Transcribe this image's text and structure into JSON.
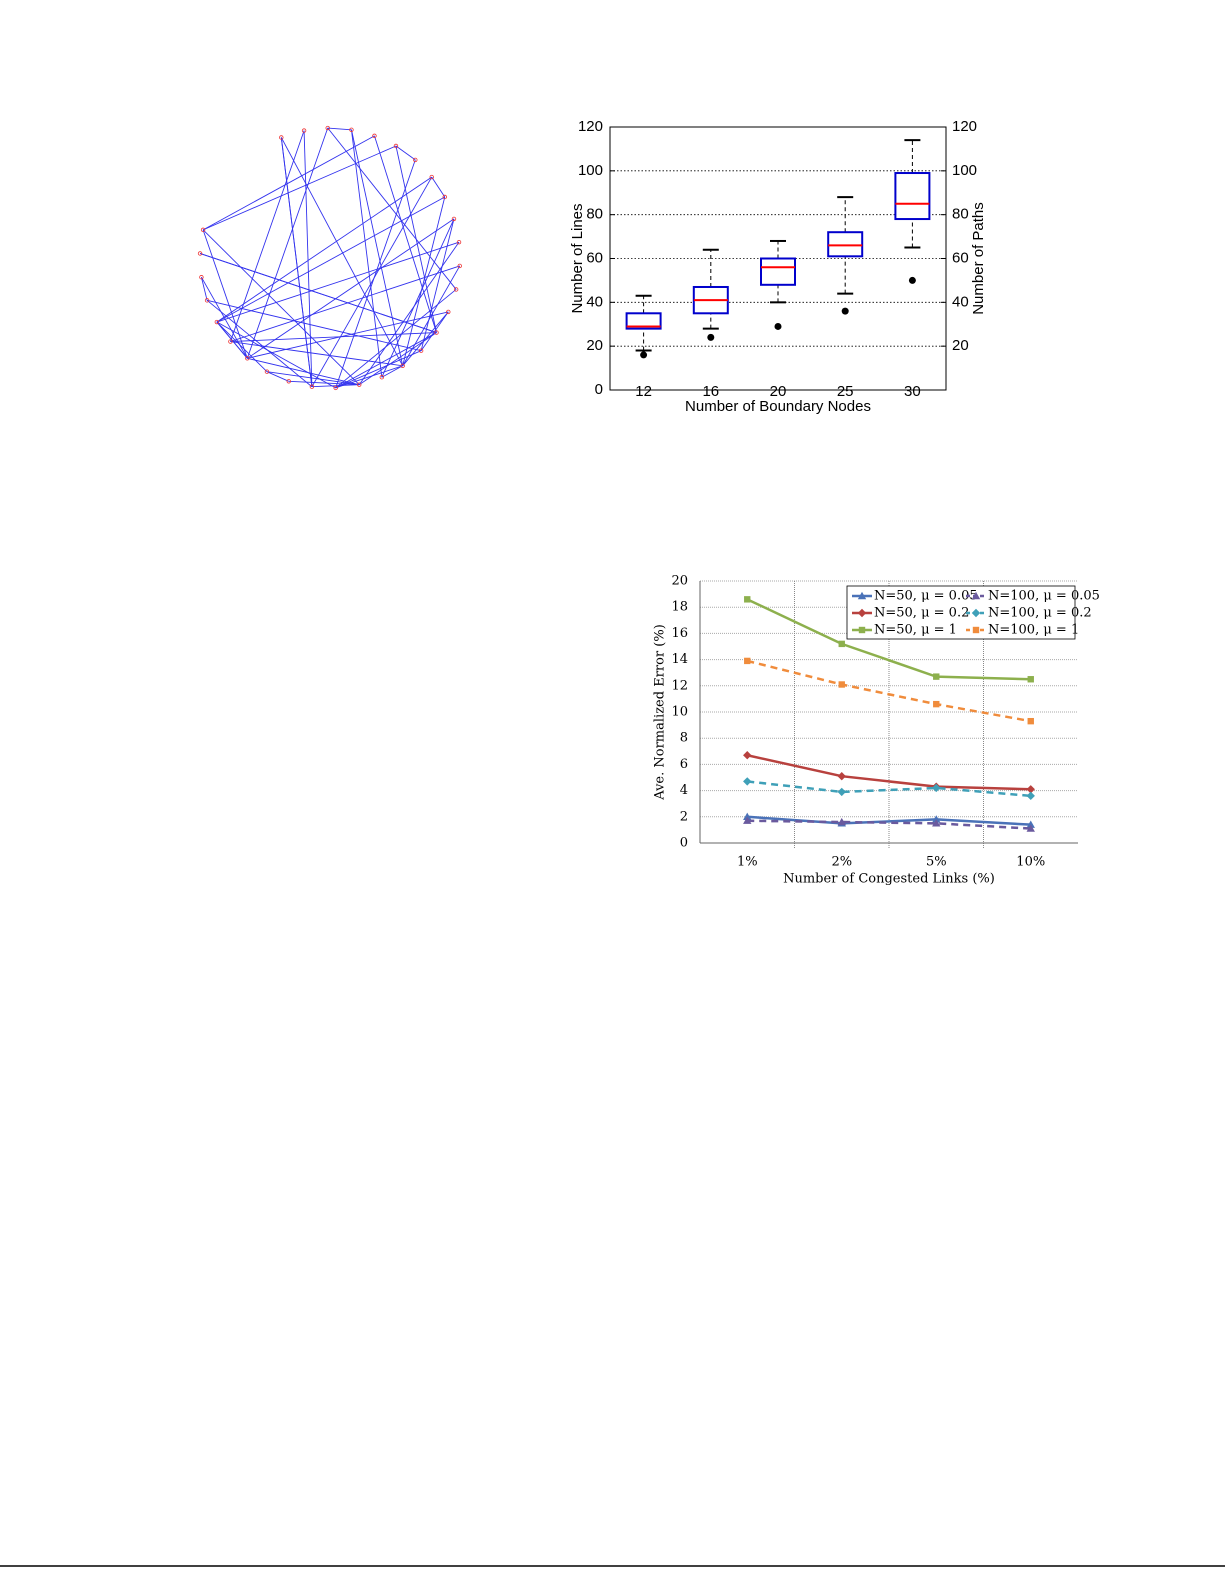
{
  "chart_data": [
    {
      "type": "box",
      "y_label": "Number of Lines",
      "y2_label": "Number of Paths",
      "x_label": "Number of Boundary Nodes",
      "categories": [
        "12",
        "16",
        "20",
        "25",
        "30"
      ],
      "boxes": [
        {
          "low": 18,
          "q1": 28,
          "median": 29,
          "q3": 35,
          "high": 43,
          "outliers": [
            16
          ]
        },
        {
          "low": 28,
          "q1": 35,
          "median": 41,
          "q3": 47,
          "high": 64,
          "outliers": [
            24
          ]
        },
        {
          "low": 40,
          "q1": 48,
          "median": 56,
          "q3": 60,
          "high": 68,
          "outliers": [
            29
          ]
        },
        {
          "low": 44,
          "q1": 61,
          "median": 66,
          "q3": 72,
          "high": 88,
          "outliers": [
            36
          ]
        },
        {
          "low": 65,
          "q1": 78,
          "median": 85,
          "q3": 99,
          "high": 114,
          "outliers": [
            50
          ]
        }
      ],
      "box_color": "#0000cc",
      "median_color": "#ff0000",
      "ylim": [
        0,
        120
      ],
      "yticks": [
        0,
        20,
        40,
        60,
        80,
        100,
        120
      ],
      "y2lim": [
        0,
        120
      ],
      "y2ticks": [
        20,
        40,
        60,
        80,
        100,
        120
      ],
      "grid": true
    },
    {
      "type": "line",
      "y_label": "Ave. Normalized Error (%)",
      "x_label": "Number of Congested Links (%)",
      "categories": [
        "1%",
        "2%",
        "5%",
        "10%"
      ],
      "series": [
        {
          "name": "N=50, μ = 0.05",
          "color": "#4a72b8",
          "dash": false,
          "marker": "triangle",
          "values": [
            2.0,
            1.5,
            1.8,
            1.4
          ]
        },
        {
          "name": "N=100, μ = 0.05",
          "color": "#6a5a9e",
          "dash": true,
          "marker": "triangle",
          "values": [
            1.7,
            1.6,
            1.5,
            1.1
          ]
        },
        {
          "name": "N=50, μ = 0.2",
          "color": "#b8413e",
          "dash": false,
          "marker": "diamond",
          "values": [
            6.7,
            5.1,
            4.3,
            4.1
          ]
        },
        {
          "name": "N=100, μ = 0.2",
          "color": "#3fa0b8",
          "dash": true,
          "marker": "diamond",
          "values": [
            4.7,
            3.9,
            4.2,
            3.6
          ]
        },
        {
          "name": "N=50, μ = 1",
          "color": "#8db04d",
          "dash": false,
          "marker": "square",
          "values": [
            18.6,
            15.2,
            12.7,
            12.5
          ]
        },
        {
          "name": "N=100, μ = 1",
          "color": "#f08c3c",
          "dash": true,
          "marker": "square",
          "values": [
            13.9,
            12.1,
            10.6,
            9.3
          ]
        }
      ],
      "ylim": [
        0,
        20
      ],
      "yticks": [
        0,
        2,
        4,
        6,
        8,
        10,
        12,
        14,
        16,
        18,
        20
      ],
      "grid": true,
      "legend": "upper right"
    }
  ]
}
